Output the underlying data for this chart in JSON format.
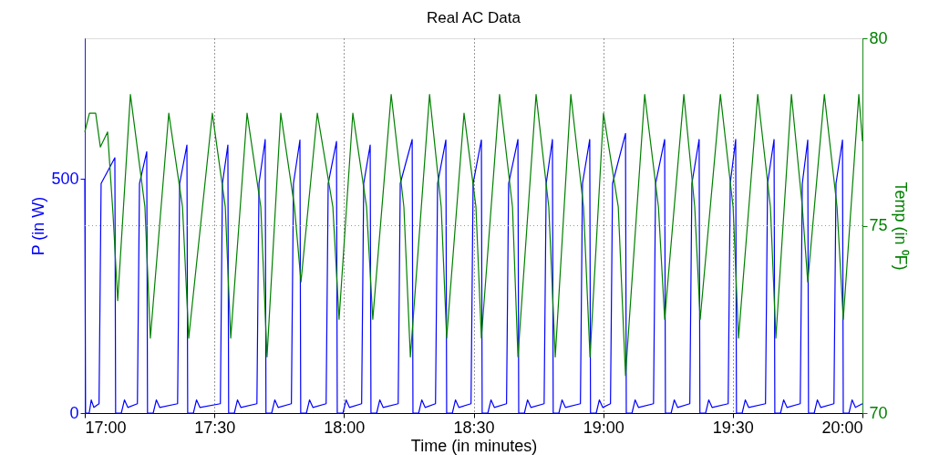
{
  "chart_data": {
    "type": "line",
    "title": "Real AC Data",
    "xlabel": "Time (in minutes)",
    "ylabel": "P (in W)",
    "y2label": "Temp (in ⁰F)",
    "xlim": [
      17,
      20
    ],
    "xticks": [
      {
        "value": 17,
        "label": "17:00"
      },
      {
        "value": 17.5,
        "label": "17:30"
      },
      {
        "value": 18,
        "label": "18:00"
      },
      {
        "value": 18.5,
        "label": "18:30"
      },
      {
        "value": 19,
        "label": "19:00"
      },
      {
        "value": 19.5,
        "label": "19:30"
      },
      {
        "value": 20,
        "label": "20:00"
      }
    ],
    "ylim": [
      0,
      800
    ],
    "yticks": [
      0,
      500
    ],
    "y2lim": [
      70,
      80
    ],
    "y2ticks": [
      70,
      75,
      80
    ],
    "grid": "x",
    "ref_lines": [
      {
        "axis": "y2",
        "value": 75,
        "color": "#66bb66",
        "line_style": "dotted"
      }
    ],
    "series": [
      {
        "color": "#0000ff",
        "x": [
          17.0,
          17.003,
          17.017,
          17.025,
          17.035,
          17.055,
          17.063,
          17.116,
          17.119,
          17.141,
          17.153,
          17.166,
          17.203,
          17.211,
          17.239,
          17.242,
          17.264,
          17.276,
          17.289,
          17.358,
          17.366,
          17.394,
          17.397,
          17.419,
          17.431,
          17.444,
          17.523,
          17.531,
          17.552,
          17.555,
          17.577,
          17.589,
          17.602,
          17.664,
          17.672,
          17.696,
          17.699,
          17.721,
          17.733,
          17.746,
          17.797,
          17.805,
          17.83,
          17.833,
          17.855,
          17.867,
          17.88,
          17.931,
          17.939,
          17.971,
          17.974,
          17.996,
          18.008,
          18.021,
          18.068,
          18.076,
          18.101,
          18.104,
          18.126,
          18.138,
          18.151,
          18.209,
          18.217,
          18.263,
          18.266,
          18.288,
          18.3,
          18.313,
          18.353,
          18.361,
          18.393,
          18.396,
          18.418,
          18.43,
          18.443,
          18.49,
          18.498,
          18.53,
          18.533,
          18.555,
          18.567,
          18.58,
          18.627,
          18.635,
          18.671,
          18.674,
          18.696,
          18.708,
          18.721,
          18.772,
          18.78,
          18.804,
          18.807,
          18.829,
          18.841,
          18.854,
          18.912,
          18.92,
          18.948,
          18.951,
          18.973,
          18.985,
          18.998,
          19.028,
          19.036,
          19.086,
          19.089,
          19.111,
          19.123,
          19.136,
          19.194,
          19.202,
          19.237,
          19.24,
          19.262,
          19.274,
          19.287,
          19.334,
          19.342,
          19.37,
          19.373,
          19.395,
          19.407,
          19.42,
          19.482,
          19.49,
          19.511,
          19.514,
          19.536,
          19.548,
          19.561,
          19.626,
          19.634,
          19.659,
          19.662,
          19.684,
          19.696,
          19.709,
          19.76,
          19.768,
          19.789,
          19.792,
          19.814,
          19.826,
          19.839,
          19.89,
          19.898,
          19.923,
          19.926,
          19.948,
          19.96,
          19.973,
          20.0
        ],
        "values": [
          500,
          0,
          0,
          28,
          12,
          20,
          490,
          545,
          0,
          0,
          28,
          12,
          20,
          490,
          558,
          0,
          0,
          28,
          12,
          20,
          490,
          572,
          0,
          0,
          28,
          12,
          20,
          490,
          572,
          0,
          0,
          28,
          12,
          20,
          490,
          584,
          0,
          0,
          28,
          12,
          20,
          490,
          583,
          0,
          0,
          28,
          12,
          20,
          490,
          580,
          0,
          0,
          28,
          12,
          20,
          490,
          572,
          0,
          0,
          28,
          12,
          20,
          490,
          584,
          0,
          0,
          28,
          12,
          20,
          490,
          583,
          0,
          0,
          28,
          12,
          20,
          490,
          583,
          0,
          0,
          28,
          12,
          20,
          490,
          584,
          0,
          0,
          28,
          12,
          20,
          490,
          584,
          0,
          0,
          28,
          12,
          20,
          490,
          584,
          0,
          0,
          28,
          12,
          20,
          490,
          597,
          0,
          0,
          28,
          12,
          20,
          490,
          584,
          0,
          0,
          28,
          12,
          20,
          490,
          584,
          0,
          0,
          28,
          12,
          20,
          490,
          584,
          0,
          0,
          28,
          12,
          20,
          490,
          584,
          0,
          0,
          28,
          12,
          20,
          490,
          583,
          0,
          0,
          28,
          12,
          20,
          490,
          583,
          0,
          0,
          28,
          12,
          20
        ]
      },
      {
        "color": "#008000",
        "axis": "y2",
        "x": [
          17.0,
          17.018,
          17.042,
          17.06,
          17.088,
          17.109,
          17.127,
          17.176,
          17.232,
          17.253,
          17.324,
          17.377,
          17.401,
          17.492,
          17.542,
          17.563,
          17.626,
          17.679,
          17.703,
          17.756,
          17.809,
          17.834,
          17.897,
          17.957,
          17.981,
          18.034,
          18.087,
          18.111,
          18.182,
          18.231,
          18.256,
          18.33,
          18.375,
          18.396,
          18.463,
          18.509,
          18.53,
          18.6,
          18.65,
          18.671,
          18.741,
          18.79,
          18.815,
          18.875,
          18.924,
          18.949,
          19.001,
          19.058,
          19.086,
          19.16,
          19.213,
          19.237,
          19.311,
          19.353,
          19.374,
          19.452,
          19.501,
          19.522,
          19.596,
          19.645,
          19.666,
          19.726,
          19.768,
          19.789,
          19.853,
          19.902,
          19.926,
          19.986,
          20.0
        ],
        "values": [
          77.5,
          78.0,
          78.0,
          77.1,
          77.5,
          75.3,
          73.0,
          78.5,
          75.5,
          72.0,
          78.0,
          75.5,
          72.0,
          78.0,
          75.5,
          72.0,
          78.0,
          75.5,
          71.5,
          78.0,
          75.5,
          73.5,
          78.0,
          75.5,
          72.5,
          78.0,
          75.5,
          72.5,
          78.5,
          75.5,
          71.5,
          78.5,
          75.5,
          72.0,
          78.0,
          75.5,
          72.0,
          78.5,
          75.5,
          71.5,
          78.5,
          75.5,
          71.5,
          78.5,
          75.5,
          71.5,
          78.0,
          75.5,
          71.0,
          78.5,
          75.5,
          72.5,
          78.5,
          75.5,
          72.5,
          78.5,
          75.5,
          72.0,
          78.5,
          75.5,
          72.0,
          78.5,
          75.5,
          73.5,
          78.5,
          75.5,
          72.5,
          78.5,
          77.25
        ]
      }
    ]
  }
}
